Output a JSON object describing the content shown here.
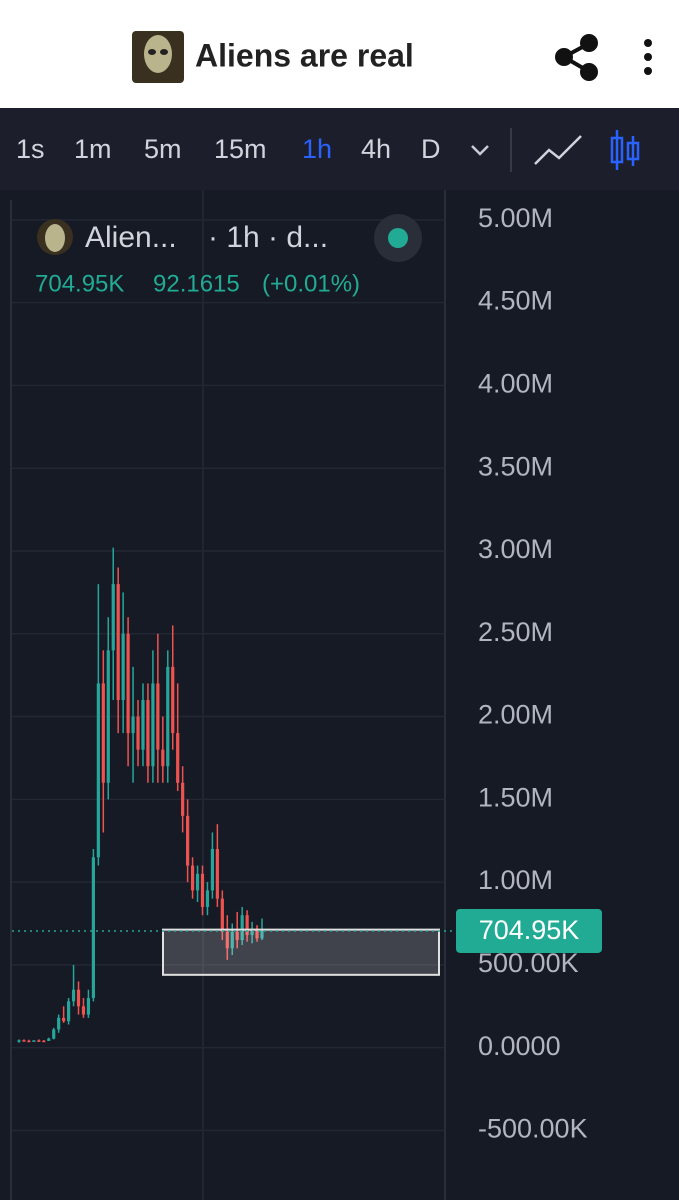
{
  "header": {
    "title": "Aliens are real"
  },
  "toolbar": {
    "intervals": [
      "1s",
      "1m",
      "5m",
      "15m",
      "1h",
      "4h",
      "D"
    ],
    "active": 4
  },
  "legend": {
    "name": "Alien...",
    "interval": "· 1h · d...",
    "last": "704.95K",
    "price": "92.1615",
    "change": "(+0.01%)"
  },
  "chart_data": {
    "type": "candlestick",
    "up_color": "#26a69a",
    "down_color": "#ef5350",
    "open": [
      40000,
      45000,
      42000,
      40000,
      44000,
      42000,
      41000,
      55000,
      110000,
      180000,
      160000,
      280000,
      350000,
      250000,
      200000,
      300000,
      1150000,
      2200000,
      1600000,
      2400000,
      2800000,
      2100000,
      2500000,
      1900000,
      2000000,
      1800000,
      2100000,
      1700000,
      2200000,
      1800000,
      1700000,
      2300000,
      1900000,
      1600000,
      1400000,
      1100000,
      950000,
      1050000,
      850000,
      950000,
      1200000,
      900000,
      700000,
      600000,
      700000,
      650000,
      800000,
      680000,
      720000,
      660000
    ],
    "high": [
      50000,
      50000,
      48000,
      45000,
      50000,
      46000,
      60000,
      120000,
      200000,
      250000,
      300000,
      500000,
      400000,
      300000,
      350000,
      1200000,
      2800000,
      2400000,
      2600000,
      3020000,
      2900000,
      2750000,
      2600000,
      2300000,
      2100000,
      2200000,
      2200000,
      2400000,
      2500000,
      2000000,
      2400000,
      2550000,
      2200000,
      1700000,
      1500000,
      1150000,
      1100000,
      1100000,
      1000000,
      1300000,
      1350000,
      950000,
      800000,
      750000,
      820000,
      850000,
      830000,
      760000,
      740000,
      780000
    ],
    "low": [
      30000,
      40000,
      35000,
      38000,
      40000,
      38000,
      40000,
      50000,
      90000,
      150000,
      140000,
      250000,
      200000,
      180000,
      180000,
      280000,
      1100000,
      1300000,
      1500000,
      2100000,
      1900000,
      1900000,
      1700000,
      1600000,
      1700000,
      1700000,
      1600000,
      1600000,
      1600000,
      1600000,
      1600000,
      1800000,
      1550000,
      1300000,
      1000000,
      900000,
      880000,
      800000,
      800000,
      900000,
      850000,
      650000,
      530000,
      560000,
      600000,
      620000,
      640000,
      630000,
      640000,
      650000
    ],
    "close": [
      45000,
      42000,
      40000,
      44000,
      42000,
      41000,
      55000,
      110000,
      180000,
      160000,
      280000,
      350000,
      250000,
      200000,
      300000,
      1150000,
      2200000,
      1600000,
      2400000,
      2800000,
      2100000,
      2500000,
      1900000,
      2000000,
      1800000,
      2100000,
      1700000,
      2200000,
      1800000,
      1700000,
      2300000,
      1900000,
      1600000,
      1400000,
      1100000,
      950000,
      1050000,
      850000,
      950000,
      1200000,
      900000,
      700000,
      600000,
      700000,
      650000,
      800000,
      680000,
      720000,
      660000,
      705000
    ],
    "ylim": [
      -920000,
      5150000
    ],
    "yticks": [
      {
        "value": 5000000,
        "label": "5.00M"
      },
      {
        "value": 4500000,
        "label": "4.50M"
      },
      {
        "value": 4000000,
        "label": "4.00M"
      },
      {
        "value": 3500000,
        "label": "3.50M"
      },
      {
        "value": 3000000,
        "label": "3.00M"
      },
      {
        "value": 2500000,
        "label": "2.50M"
      },
      {
        "value": 2000000,
        "label": "2.00M"
      },
      {
        "value": 1500000,
        "label": "1.50M"
      },
      {
        "value": 1000000,
        "label": "1.00M"
      },
      {
        "value": 500000,
        "label": "500.00K"
      },
      {
        "value": 0,
        "label": "0.0000"
      },
      {
        "value": -500000,
        "label": "-500.00K"
      }
    ],
    "grid": true,
    "last_price": {
      "value": 704950,
      "label": "704.95K"
    },
    "rectangle": {
      "low": 440000,
      "high": 713000
    }
  }
}
